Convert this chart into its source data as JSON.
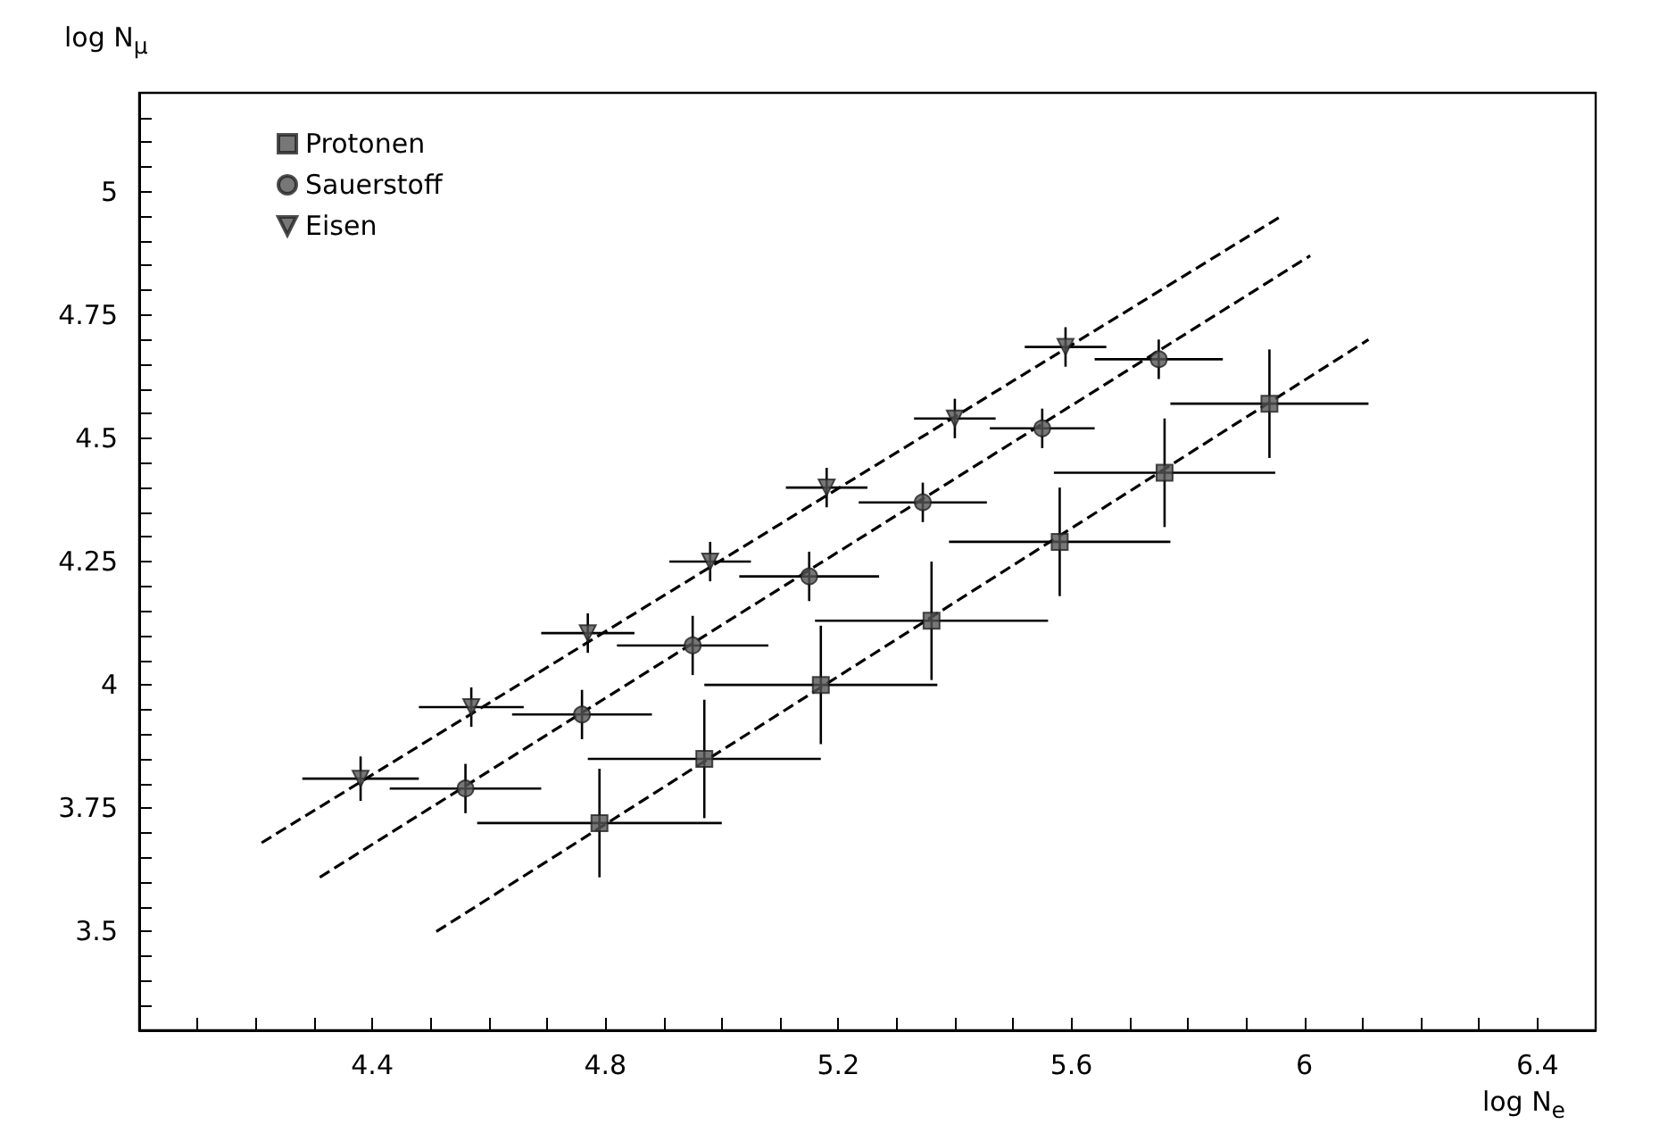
{
  "chart_data": {
    "type": "scatter",
    "xlabel": "log N$_{e}$",
    "ylabel": "log N$_{μ}$",
    "xlim": [
      4.0,
      6.5
    ],
    "ylim": [
      3.3,
      5.2
    ],
    "xticks": [
      {
        "value": 4.1,
        "label": null
      },
      {
        "value": 4.2,
        "label": null
      },
      {
        "value": 4.3,
        "label": null
      },
      {
        "value": 4.4,
        "label": "4.4"
      },
      {
        "value": 4.5,
        "label": null
      },
      {
        "value": 4.6,
        "label": null
      },
      {
        "value": 4.7,
        "label": null
      },
      {
        "value": 4.8,
        "label": "4.8"
      },
      {
        "value": 4.9,
        "label": null
      },
      {
        "value": 5.0,
        "label": null
      },
      {
        "value": 5.1,
        "label": null
      },
      {
        "value": 5.2,
        "label": "5.2"
      },
      {
        "value": 5.3,
        "label": null
      },
      {
        "value": 5.4,
        "label": null
      },
      {
        "value": 5.5,
        "label": null
      },
      {
        "value": 5.6,
        "label": "5.6"
      },
      {
        "value": 5.7,
        "label": null
      },
      {
        "value": 5.8,
        "label": null
      },
      {
        "value": 5.9,
        "label": null
      },
      6,
      {
        "value": 6.1,
        "label": null
      },
      {
        "value": 6.2,
        "label": null
      },
      {
        "value": 6.3,
        "label": null
      },
      {
        "value": 6.4,
        "label": "6.4"
      }
    ],
    "yticks": [
      {
        "value": 3.35,
        "label": null
      },
      {
        "value": 3.4,
        "label": null
      },
      {
        "value": 3.45,
        "label": null
      },
      3.5,
      {
        "value": 3.55,
        "label": null
      },
      {
        "value": 3.6,
        "label": null
      },
      {
        "value": 3.65,
        "label": null
      },
      {
        "value": 3.7,
        "label": null
      },
      3.75,
      {
        "value": 3.8,
        "label": null
      },
      {
        "value": 3.85,
        "label": null
      },
      {
        "value": 3.9,
        "label": null
      },
      {
        "value": 3.95,
        "label": null
      },
      4,
      {
        "value": 4.05,
        "label": null
      },
      {
        "value": 4.1,
        "label": null
      },
      {
        "value": 4.15,
        "label": null
      },
      {
        "value": 4.2,
        "label": null
      },
      4.25,
      {
        "value": 4.3,
        "label": null
      },
      {
        "value": 4.35,
        "label": null
      },
      {
        "value": 4.4,
        "label": null
      },
      {
        "value": 4.45,
        "label": null
      },
      4.5,
      {
        "value": 4.55,
        "label": null
      },
      {
        "value": 4.6,
        "label": null
      },
      {
        "value": 4.65,
        "label": null
      },
      {
        "value": 4.7,
        "label": null
      },
      4.75,
      {
        "value": 4.8,
        "label": null
      },
      {
        "value": 4.85,
        "label": null
      },
      {
        "value": 4.9,
        "label": null
      },
      {
        "value": 4.95,
        "label": null
      },
      5,
      {
        "value": 5.05,
        "label": null
      },
      {
        "value": 5.1,
        "label": null
      },
      {
        "value": 5.15,
        "label": null
      }
    ],
    "grid": false,
    "legend": "top left",
    "series": [
      {
        "name": "Protonen",
        "color": "#555555",
        "marker": "square",
        "x": [
          4.79,
          4.97,
          5.17,
          5.36,
          5.58,
          5.76,
          5.94
        ],
        "values": [
          3.72,
          3.85,
          4.0,
          4.13,
          4.29,
          4.43,
          4.57
        ],
        "xerrors": [
          0.21,
          0.2,
          0.2,
          0.2,
          0.19,
          0.19,
          0.17
        ],
        "errors": [
          0.11,
          0.12,
          0.12,
          0.12,
          0.11,
          0.11,
          0.11
        ]
      },
      {
        "name": "Sauerstoff",
        "color": "#555555",
        "marker": "circle",
        "x": [
          4.56,
          4.76,
          4.95,
          5.15,
          5.345,
          5.55,
          5.75
        ],
        "values": [
          3.79,
          3.94,
          4.08,
          4.22,
          4.37,
          4.52,
          4.66
        ],
        "xerrors": [
          0.13,
          0.12,
          0.13,
          0.12,
          0.11,
          0.09,
          0.11
        ],
        "errors": [
          0.05,
          0.05,
          0.06,
          0.05,
          0.04,
          0.04,
          0.04
        ]
      },
      {
        "name": "Eisen",
        "color": "#555555",
        "marker": "triangle",
        "x": [
          4.38,
          4.57,
          4.77,
          4.98,
          5.18,
          5.4,
          5.59
        ],
        "values": [
          3.81,
          3.955,
          4.105,
          4.25,
          4.4,
          4.54,
          4.685
        ],
        "xerrors": [
          0.1,
          0.09,
          0.08,
          0.07,
          0.07,
          0.07,
          0.07
        ],
        "errors": [
          0.045,
          0.04,
          0.04,
          0.04,
          0.04,
          0.04,
          0.04
        ]
      },
      {
        "type": "line",
        "color": "#000000",
        "line_style": "dashed",
        "marker": "none",
        "x": [
          4.51,
          6.11
        ],
        "values": [
          3.5,
          4.7
        ]
      },
      {
        "type": "line",
        "color": "#000000",
        "line_style": "dashed",
        "marker": "none",
        "x": [
          4.31,
          6.01
        ],
        "values": [
          3.61,
          4.87
        ]
      },
      {
        "type": "line",
        "color": "#000000",
        "line_style": "dashed",
        "marker": "none",
        "x": [
          4.21,
          5.96
        ],
        "values": [
          3.68,
          4.95
        ]
      }
    ]
  }
}
